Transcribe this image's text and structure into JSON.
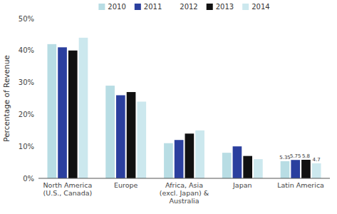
{
  "chart_data": {
    "type": "bar",
    "categories": [
      "North America\n(U.S., Canada)",
      "Europe",
      "Africa, Asia\n(excl. Japan) &\nAustralia",
      "Japan",
      "Latin America"
    ],
    "series": [
      {
        "name": "2010",
        "color": "#b8dde4",
        "values": [
          42,
          29,
          11,
          8,
          5.35
        ],
        "value_labels": [
          null,
          null,
          null,
          null,
          "5.35"
        ]
      },
      {
        "name": "2011",
        "color": "#2b3f9e",
        "values": [
          41,
          26,
          12,
          10,
          5.75
        ],
        "value_labels": [
          null,
          null,
          null,
          null,
          "5.75"
        ]
      },
      {
        "name": "2012",
        "values": [
          null,
          null,
          null,
          null,
          null
        ]
      },
      {
        "name": "2013",
        "color": "#111111",
        "values": [
          40,
          27,
          14,
          7,
          5.8
        ],
        "value_labels": [
          null,
          null,
          null,
          null,
          "5.8"
        ]
      },
      {
        "name": "2014",
        "color": "#cce8ee",
        "values": [
          44,
          24,
          15,
          6,
          4.7
        ],
        "value_labels": [
          null,
          null,
          null,
          null,
          "4.7"
        ]
      }
    ],
    "ylabel": "Percentage of Revenue",
    "ylim": [
      0,
      50
    ],
    "yticks": [
      {
        "value": 0,
        "label": "0%"
      },
      {
        "value": 10,
        "label": "10%"
      },
      {
        "value": 20,
        "label": "20%"
      },
      {
        "value": 30,
        "label": "30%"
      },
      {
        "value": 40,
        "label": "40%"
      },
      {
        "value": 50,
        "label": "50%"
      }
    ],
    "grid": false,
    "legend": "top",
    "data_labels": true
  }
}
